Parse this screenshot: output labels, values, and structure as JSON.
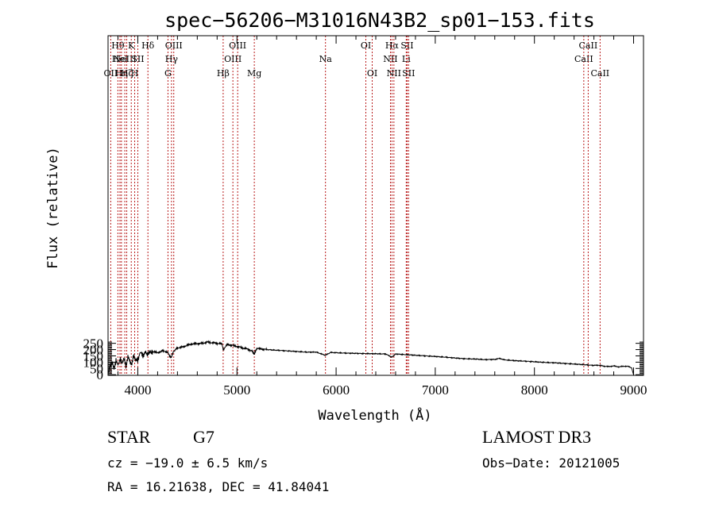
{
  "chart_data": {
    "type": "line",
    "title": "spec−56206−M31016N43B2_sp01−153.fits",
    "xlabel": "Wavelength (Å)",
    "ylabel": "Flux (relative)",
    "xlim": [
      3700,
      9100
    ],
    "ylim": [
      -5,
      2700
    ],
    "x_ticks": [
      4000,
      5000,
      6000,
      7000,
      8000,
      9000
    ],
    "y_ticks": [
      0,
      50,
      100,
      150,
      200,
      250
    ],
    "series": [
      {
        "name": "spectrum",
        "x": [
          3700,
          3720,
          3740,
          3760,
          3780,
          3800,
          3820,
          3840,
          3860,
          3880,
          3900,
          3920,
          3940,
          3960,
          3980,
          4000,
          4020,
          4040,
          4060,
          4080,
          4100,
          4150,
          4200,
          4250,
          4300,
          4320,
          4340,
          4360,
          4400,
          4450,
          4500,
          4550,
          4600,
          4650,
          4700,
          4750,
          4800,
          4850,
          4861,
          4900,
          4950,
          5000,
          5050,
          5100,
          5150,
          5175,
          5200,
          5250,
          5300,
          5400,
          5500,
          5600,
          5700,
          5800,
          5890,
          5950,
          6000,
          6100,
          6200,
          6300,
          6400,
          6500,
          6563,
          6600,
          6700,
          6800,
          6900,
          7000,
          7100,
          7200,
          7300,
          7400,
          7500,
          7600,
          7650,
          7700,
          7800,
          7900,
          8000,
          8100,
          8200,
          8300,
          8400,
          8500,
          8600,
          8650,
          8700,
          8750,
          8800,
          8850,
          8900,
          8950,
          8980,
          9000
        ],
        "values": [
          5,
          60,
          110,
          40,
          120,
          70,
          130,
          85,
          140,
          60,
          150,
          100,
          90,
          150,
          120,
          110,
          175,
          165,
          155,
          180,
          165,
          185,
          175,
          190,
          180,
          150,
          140,
          185,
          215,
          220,
          235,
          245,
          248,
          250,
          260,
          255,
          250,
          245,
          200,
          240,
          235,
          225,
          215,
          205,
          190,
          165,
          210,
          205,
          200,
          195,
          190,
          185,
          180,
          180,
          155,
          178,
          175,
          172,
          170,
          168,
          167,
          165,
          140,
          165,
          160,
          155,
          150,
          145,
          140,
          133,
          127,
          125,
          120,
          122,
          130,
          118,
          112,
          108,
          103,
          98,
          95,
          90,
          85,
          80,
          74,
          76,
          68,
          65,
          70,
          62,
          68,
          65,
          55,
          0
        ]
      }
    ],
    "line_markers": [
      {
        "w": 3727,
        "label": "OII",
        "row": 2
      },
      {
        "w": 3799,
        "label": "Hθ",
        "row": 0
      },
      {
        "w": 3820,
        "label": "HeI",
        "row": 1
      },
      {
        "w": 3835,
        "label": "Hη",
        "row": 2
      },
      {
        "w": 3869,
        "label": "NeIII",
        "row": 1
      },
      {
        "w": 3889,
        "label": "Hζ",
        "row": 2
      },
      {
        "w": 3934,
        "label": "K",
        "row": 0
      },
      {
        "w": 3969,
        "label": "H",
        "row": 2
      },
      {
        "w": 4000,
        "label": "SII",
        "row": 1
      },
      {
        "w": 4102,
        "label": "Hδ",
        "row": 0
      },
      {
        "w": 4304,
        "label": "G",
        "row": 2
      },
      {
        "w": 4340,
        "label": "Hγ",
        "row": 1
      },
      {
        "w": 4363,
        "label": "OIII",
        "row": 0
      },
      {
        "w": 4861,
        "label": "Hβ",
        "row": 2
      },
      {
        "w": 4959,
        "label": "OIII",
        "row": 1
      },
      {
        "w": 5007,
        "label": "OIII",
        "row": 0
      },
      {
        "w": 5175,
        "label": "Mg",
        "row": 2
      },
      {
        "w": 5893,
        "label": "Na",
        "row": 1
      },
      {
        "w": 6300,
        "label": "OI",
        "row": 0
      },
      {
        "w": 6364,
        "label": "OI",
        "row": 2
      },
      {
        "w": 6548,
        "label": "NII",
        "row": 1
      },
      {
        "w": 6563,
        "label": "Hα",
        "row": 0
      },
      {
        "w": 6583,
        "label": "NII",
        "row": 2
      },
      {
        "w": 6707,
        "label": "Li",
        "row": 1
      },
      {
        "w": 6716,
        "label": "SII",
        "row": 0
      },
      {
        "w": 6731,
        "label": "SII",
        "row": 2
      },
      {
        "w": 8498,
        "label": "CaII",
        "row": 1
      },
      {
        "w": 8542,
        "label": "CaII",
        "row": 0
      },
      {
        "w": 8662,
        "label": "CaII",
        "row": 2
      }
    ]
  },
  "info": {
    "object_class": "STAR",
    "subclass": "G7",
    "redshift_text": "cz = −19.0 ± 6.5 km/s",
    "coords_text": "RA =  16.21638, DEC =  41.84041",
    "survey": "LAMOST DR3",
    "obs_date_text": "Obs−Date: 20121005"
  },
  "colors": {
    "spectrum": "#000000",
    "marker_line": "#b00000",
    "axes": "#000000"
  }
}
